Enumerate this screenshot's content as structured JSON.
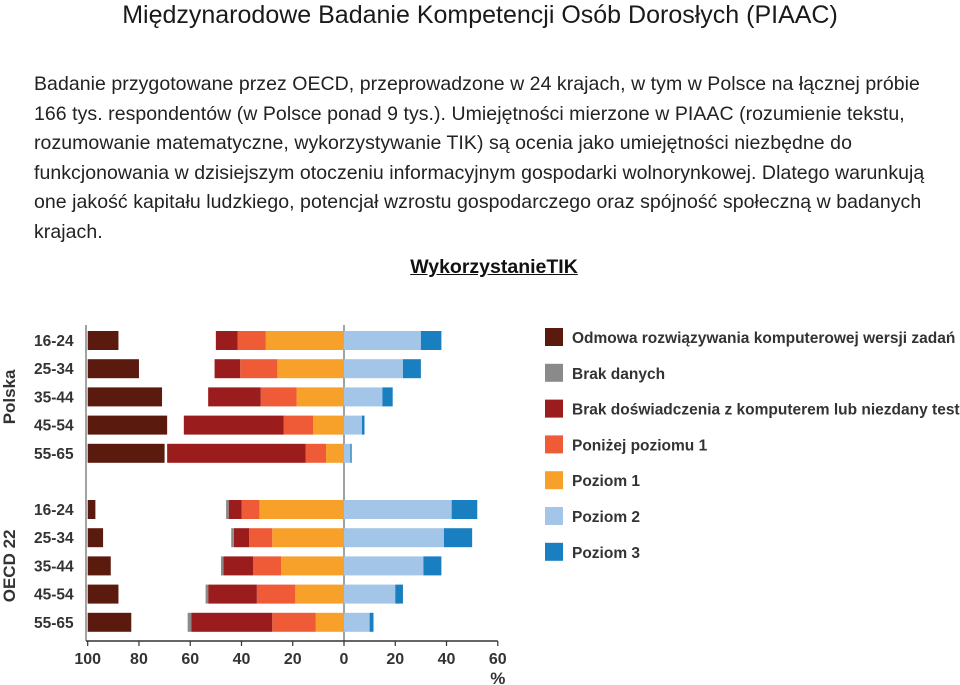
{
  "header": {
    "title": "Międzynarodowe Badanie Kompetencji Osób Dorosłych (PIAAC)",
    "description": "Badanie przygotowane przez OECD, przeprowadzone w 24 krajach, w tym w Polsce na łącznej próbie 166 tys. respondentów (w Polsce ponad 9 tys.). Umiejętności mierzone w PIAAC (rozumienie tekstu, rozumowanie matematyczne, wykorzystywanie TIK) są ocenia jako umiejętności niezbędne do funkcjonowania w dzisiejszym otoczeniu informacyjnym gospodarki wolnorynkowej. Dlatego warunkują one jakość kapitału ludzkiego, potencjał wzrostu gospodarczego oraz spójność społeczną w badanych krajach.",
    "subtitle": "WykorzystanieTIK"
  },
  "chart_data": {
    "type": "bar",
    "orientation": "horizontal-stacked-diverging",
    "title": "WykorzystanieTIK",
    "xlabel": "%",
    "xlim": [
      -100,
      60
    ],
    "xticks": [
      "100",
      "80",
      "60",
      "40",
      "20",
      "0",
      "20",
      "40",
      "60"
    ],
    "groups": [
      "Polska",
      "OECD 22"
    ],
    "categories": [
      "16-24",
      "25-34",
      "35-44",
      "45-54",
      "55-65"
    ],
    "legend": [
      {
        "key": "odmowa",
        "label": "Odmowa rozwiązywania komputerowej wersji zadań",
        "color": "#5b1a0e"
      },
      {
        "key": "brak_danych",
        "label": "Brak danych",
        "color": "#8a8a8a"
      },
      {
        "key": "brak_dosw",
        "label": "Brak doświadczenia z komputerem lub niezdany test",
        "color": "#9b1c1c"
      },
      {
        "key": "ponizej1",
        "label": "Poniżej poziomu 1",
        "color": "#ef5b36"
      },
      {
        "key": "poziom1",
        "label": "Poziom 1",
        "color": "#f7a12a"
      },
      {
        "key": "poziom2",
        "label": "Poziom 2",
        "color": "#a3c6e8"
      },
      {
        "key": "poziom3",
        "label": "Poziom 3",
        "color": "#1a7fc1"
      }
    ],
    "left_series_order": [
      "poziom1",
      "ponizej1",
      "brak_dosw",
      "brak_danych"
    ],
    "right_series_order": [
      "poziom2",
      "poziom3"
    ],
    "refusal_series": "odmowa",
    "series": [
      {
        "group": "Polska",
        "category": "16-24",
        "odmowa": 12,
        "brak_danych": 0,
        "brak_dosw": 8.5,
        "ponizej1": 11,
        "poziom1": 30.5,
        "poziom2": 30,
        "poziom3": 8
      },
      {
        "group": "Polska",
        "category": "25-34",
        "odmowa": 20,
        "brak_danych": 0,
        "brak_dosw": 10,
        "ponizej1": 14.5,
        "poziom1": 26,
        "poziom2": 23,
        "poziom3": 7
      },
      {
        "group": "Polska",
        "category": "35-44",
        "odmowa": 29,
        "brak_danych": 0,
        "brak_dosw": 20.5,
        "ponizej1": 14,
        "poziom1": 18.5,
        "poziom2": 15,
        "poziom3": 4
      },
      {
        "group": "Polska",
        "category": "45-54",
        "odmowa": 31,
        "brak_danych": 0,
        "brak_dosw": 39,
        "ponizej1": 11.5,
        "poziom1": 12,
        "poziom2": 7,
        "poziom3": 1
      },
      {
        "group": "Polska",
        "category": "55-65",
        "odmowa": 30,
        "brak_danych": 0,
        "brak_dosw": 54,
        "ponizej1": 8,
        "poziom1": 7,
        "poziom2": 2.5,
        "poziom3": 0.5
      },
      {
        "group": "OECD 22",
        "category": "16-24",
        "odmowa": 3,
        "brak_danych": 1,
        "brak_dosw": 5,
        "ponizej1": 7,
        "poziom1": 33,
        "poziom2": 42,
        "poziom3": 10
      },
      {
        "group": "OECD 22",
        "category": "25-34",
        "odmowa": 6,
        "brak_danych": 1,
        "brak_dosw": 6,
        "ponizej1": 9,
        "poziom1": 28,
        "poziom2": 39,
        "poziom3": 11
      },
      {
        "group": "OECD 22",
        "category": "35-44",
        "odmowa": 9,
        "brak_danych": 1,
        "brak_dosw": 11.5,
        "ponizej1": 11,
        "poziom1": 24.5,
        "poziom2": 31,
        "poziom3": 7
      },
      {
        "group": "OECD 22",
        "category": "45-54",
        "odmowa": 12,
        "brak_danych": 1,
        "brak_dosw": 19,
        "ponizej1": 15,
        "poziom1": 19,
        "poziom2": 20,
        "poziom3": 3
      },
      {
        "group": "OECD 22",
        "category": "55-65",
        "odmowa": 17,
        "brak_danych": 1.5,
        "brak_dosw": 31.5,
        "ponizej1": 17,
        "poziom1": 11,
        "poziom2": 10,
        "poziom3": 1.5
      }
    ]
  }
}
